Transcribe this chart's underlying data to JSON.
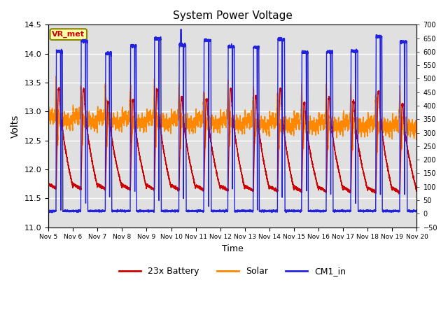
{
  "title": "System Power Voltage",
  "xlabel": "Time",
  "ylabel": "Volts",
  "ylim_left": [
    11.0,
    14.5
  ],
  "ylim_right": [
    -50,
    700
  ],
  "yticks_left": [
    11.0,
    11.5,
    12.0,
    12.5,
    13.0,
    13.5,
    14.0,
    14.5
  ],
  "yticks_right": [
    -50,
    0,
    50,
    100,
    150,
    200,
    250,
    300,
    350,
    400,
    450,
    500,
    550,
    600,
    650,
    700
  ],
  "legend_labels": [
    "23x Battery",
    "Solar",
    "CM1_in"
  ],
  "legend_colors": [
    "#cc0000",
    "#ff8800",
    "#2222dd"
  ],
  "tag_text": "VR_met",
  "tag_bg": "#ffffaa",
  "tag_border": "#888800",
  "tag_text_color": "#cc0000",
  "bg_color": "#ffffff",
  "plot_bg_color": "#e0e0e0",
  "grid_color": "#ffffff",
  "n_days": 15,
  "day_start": 5
}
